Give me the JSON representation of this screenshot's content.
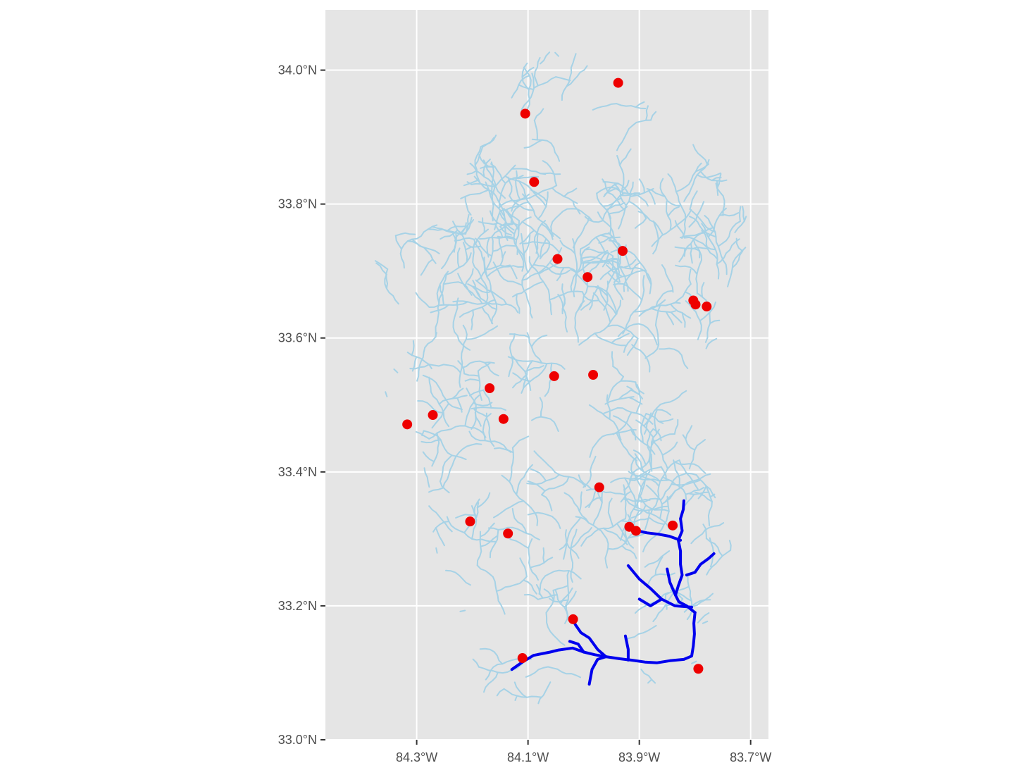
{
  "map": {
    "x_axis": {
      "ticks": [
        -84.3,
        -84.1,
        -83.9,
        -83.7
      ],
      "tick_labels": [
        "84.3°W",
        "84.1°W",
        "83.9°W",
        "83.7°W"
      ]
    },
    "y_axis": {
      "ticks": [
        33.0,
        33.2,
        33.4,
        33.6,
        33.8,
        34.0
      ],
      "tick_labels": [
        "33.0°N",
        "33.2°N",
        "33.4°N",
        "33.6°N",
        "33.8°N",
        "34.0°N"
      ]
    },
    "xlim": [
      -84.464,
      -83.668
    ],
    "ylim": [
      33.0,
      34.09
    ],
    "colors": {
      "panel": "#e5e5e5",
      "grid": "#ffffff",
      "streams": "#a6d2e6",
      "main_river": "#0000ee",
      "sites": "#ee0000"
    },
    "sites": [
      {
        "lon": -83.938,
        "lat": 33.981
      },
      {
        "lon": -84.105,
        "lat": 33.935
      },
      {
        "lon": -84.089,
        "lat": 33.833
      },
      {
        "lon": -84.047,
        "lat": 33.718
      },
      {
        "lon": -83.93,
        "lat": 33.73
      },
      {
        "lon": -83.993,
        "lat": 33.691
      },
      {
        "lon": -83.803,
        "lat": 33.656
      },
      {
        "lon": -83.799,
        "lat": 33.65
      },
      {
        "lon": -83.779,
        "lat": 33.647
      },
      {
        "lon": -83.983,
        "lat": 33.545
      },
      {
        "lon": -84.053,
        "lat": 33.543
      },
      {
        "lon": -84.169,
        "lat": 33.525
      },
      {
        "lon": -84.144,
        "lat": 33.479
      },
      {
        "lon": -84.271,
        "lat": 33.485
      },
      {
        "lon": -84.317,
        "lat": 33.471
      },
      {
        "lon": -83.972,
        "lat": 33.377
      },
      {
        "lon": -84.204,
        "lat": 33.326
      },
      {
        "lon": -84.136,
        "lat": 33.308
      },
      {
        "lon": -83.918,
        "lat": 33.318
      },
      {
        "lon": -83.906,
        "lat": 33.312
      },
      {
        "lon": -83.84,
        "lat": 33.32
      },
      {
        "lon": -84.019,
        "lat": 33.18
      },
      {
        "lon": -84.11,
        "lat": 33.122
      },
      {
        "lon": -83.794,
        "lat": 33.106
      }
    ],
    "main_river": [
      [
        [
          -84.129,
          33.105
        ],
        [
          -84.11,
          33.116
        ],
        [
          -84.09,
          33.126
        ],
        [
          -84.06,
          33.131
        ],
        [
          -84.045,
          33.134
        ],
        [
          -84.02,
          33.137
        ],
        [
          -84.0,
          33.131
        ],
        [
          -83.98,
          33.127
        ],
        [
          -83.96,
          33.124
        ],
        [
          -83.935,
          33.121
        ],
        [
          -83.915,
          33.119
        ],
        [
          -83.89,
          33.116
        ],
        [
          -83.868,
          33.115
        ],
        [
          -83.845,
          33.118
        ],
        [
          -83.82,
          33.12
        ],
        [
          -83.806,
          33.125
        ],
        [
          -83.803,
          33.14
        ],
        [
          -83.801,
          33.158
        ],
        [
          -83.802,
          33.174
        ],
        [
          -83.8,
          33.19
        ]
      ],
      [
        [
          -83.8,
          33.19
        ],
        [
          -83.815,
          33.2
        ],
        [
          -83.829,
          33.206
        ],
        [
          -83.835,
          33.216
        ],
        [
          -83.83,
          33.23
        ],
        [
          -83.823,
          33.246
        ],
        [
          -83.826,
          33.262
        ],
        [
          -83.826,
          33.282
        ],
        [
          -83.83,
          33.298
        ],
        [
          -83.823,
          33.312
        ],
        [
          -83.826,
          33.33
        ],
        [
          -83.821,
          33.344
        ],
        [
          -83.82,
          33.357
        ]
      ],
      [
        [
          -83.826,
          33.298
        ],
        [
          -83.846,
          33.304
        ],
        [
          -83.866,
          33.307
        ],
        [
          -83.886,
          33.309
        ],
        [
          -83.903,
          33.312
        ]
      ],
      [
        [
          -83.815,
          33.246
        ],
        [
          -83.8,
          33.25
        ],
        [
          -83.79,
          33.262
        ],
        [
          -83.775,
          33.271
        ],
        [
          -83.766,
          33.278
        ]
      ],
      [
        [
          -83.806,
          33.198
        ],
        [
          -83.836,
          33.2
        ],
        [
          -83.86,
          33.21
        ],
        [
          -83.88,
          33.226
        ],
        [
          -83.9,
          33.24
        ],
        [
          -83.92,
          33.26
        ]
      ],
      [
        [
          -83.86,
          33.21
        ],
        [
          -83.88,
          33.2
        ],
        [
          -83.9,
          33.21
        ]
      ],
      [
        [
          -83.835,
          33.216
        ],
        [
          -83.845,
          33.235
        ],
        [
          -83.85,
          33.255
        ]
      ],
      [
        [
          -83.92,
          33.119
        ],
        [
          -83.92,
          33.135
        ],
        [
          -83.925,
          33.155
        ]
      ],
      [
        [
          -83.96,
          33.124
        ],
        [
          -83.975,
          33.12
        ],
        [
          -83.985,
          33.105
        ],
        [
          -83.99,
          33.083
        ]
      ],
      [
        [
          -83.96,
          33.124
        ],
        [
          -83.975,
          33.135
        ],
        [
          -83.99,
          33.152
        ],
        [
          -84.005,
          33.16
        ],
        [
          -84.015,
          33.172
        ],
        [
          -84.019,
          33.18
        ]
      ],
      [
        [
          -84.0,
          33.131
        ],
        [
          -84.01,
          33.143
        ],
        [
          -84.025,
          33.147
        ]
      ]
    ]
  }
}
